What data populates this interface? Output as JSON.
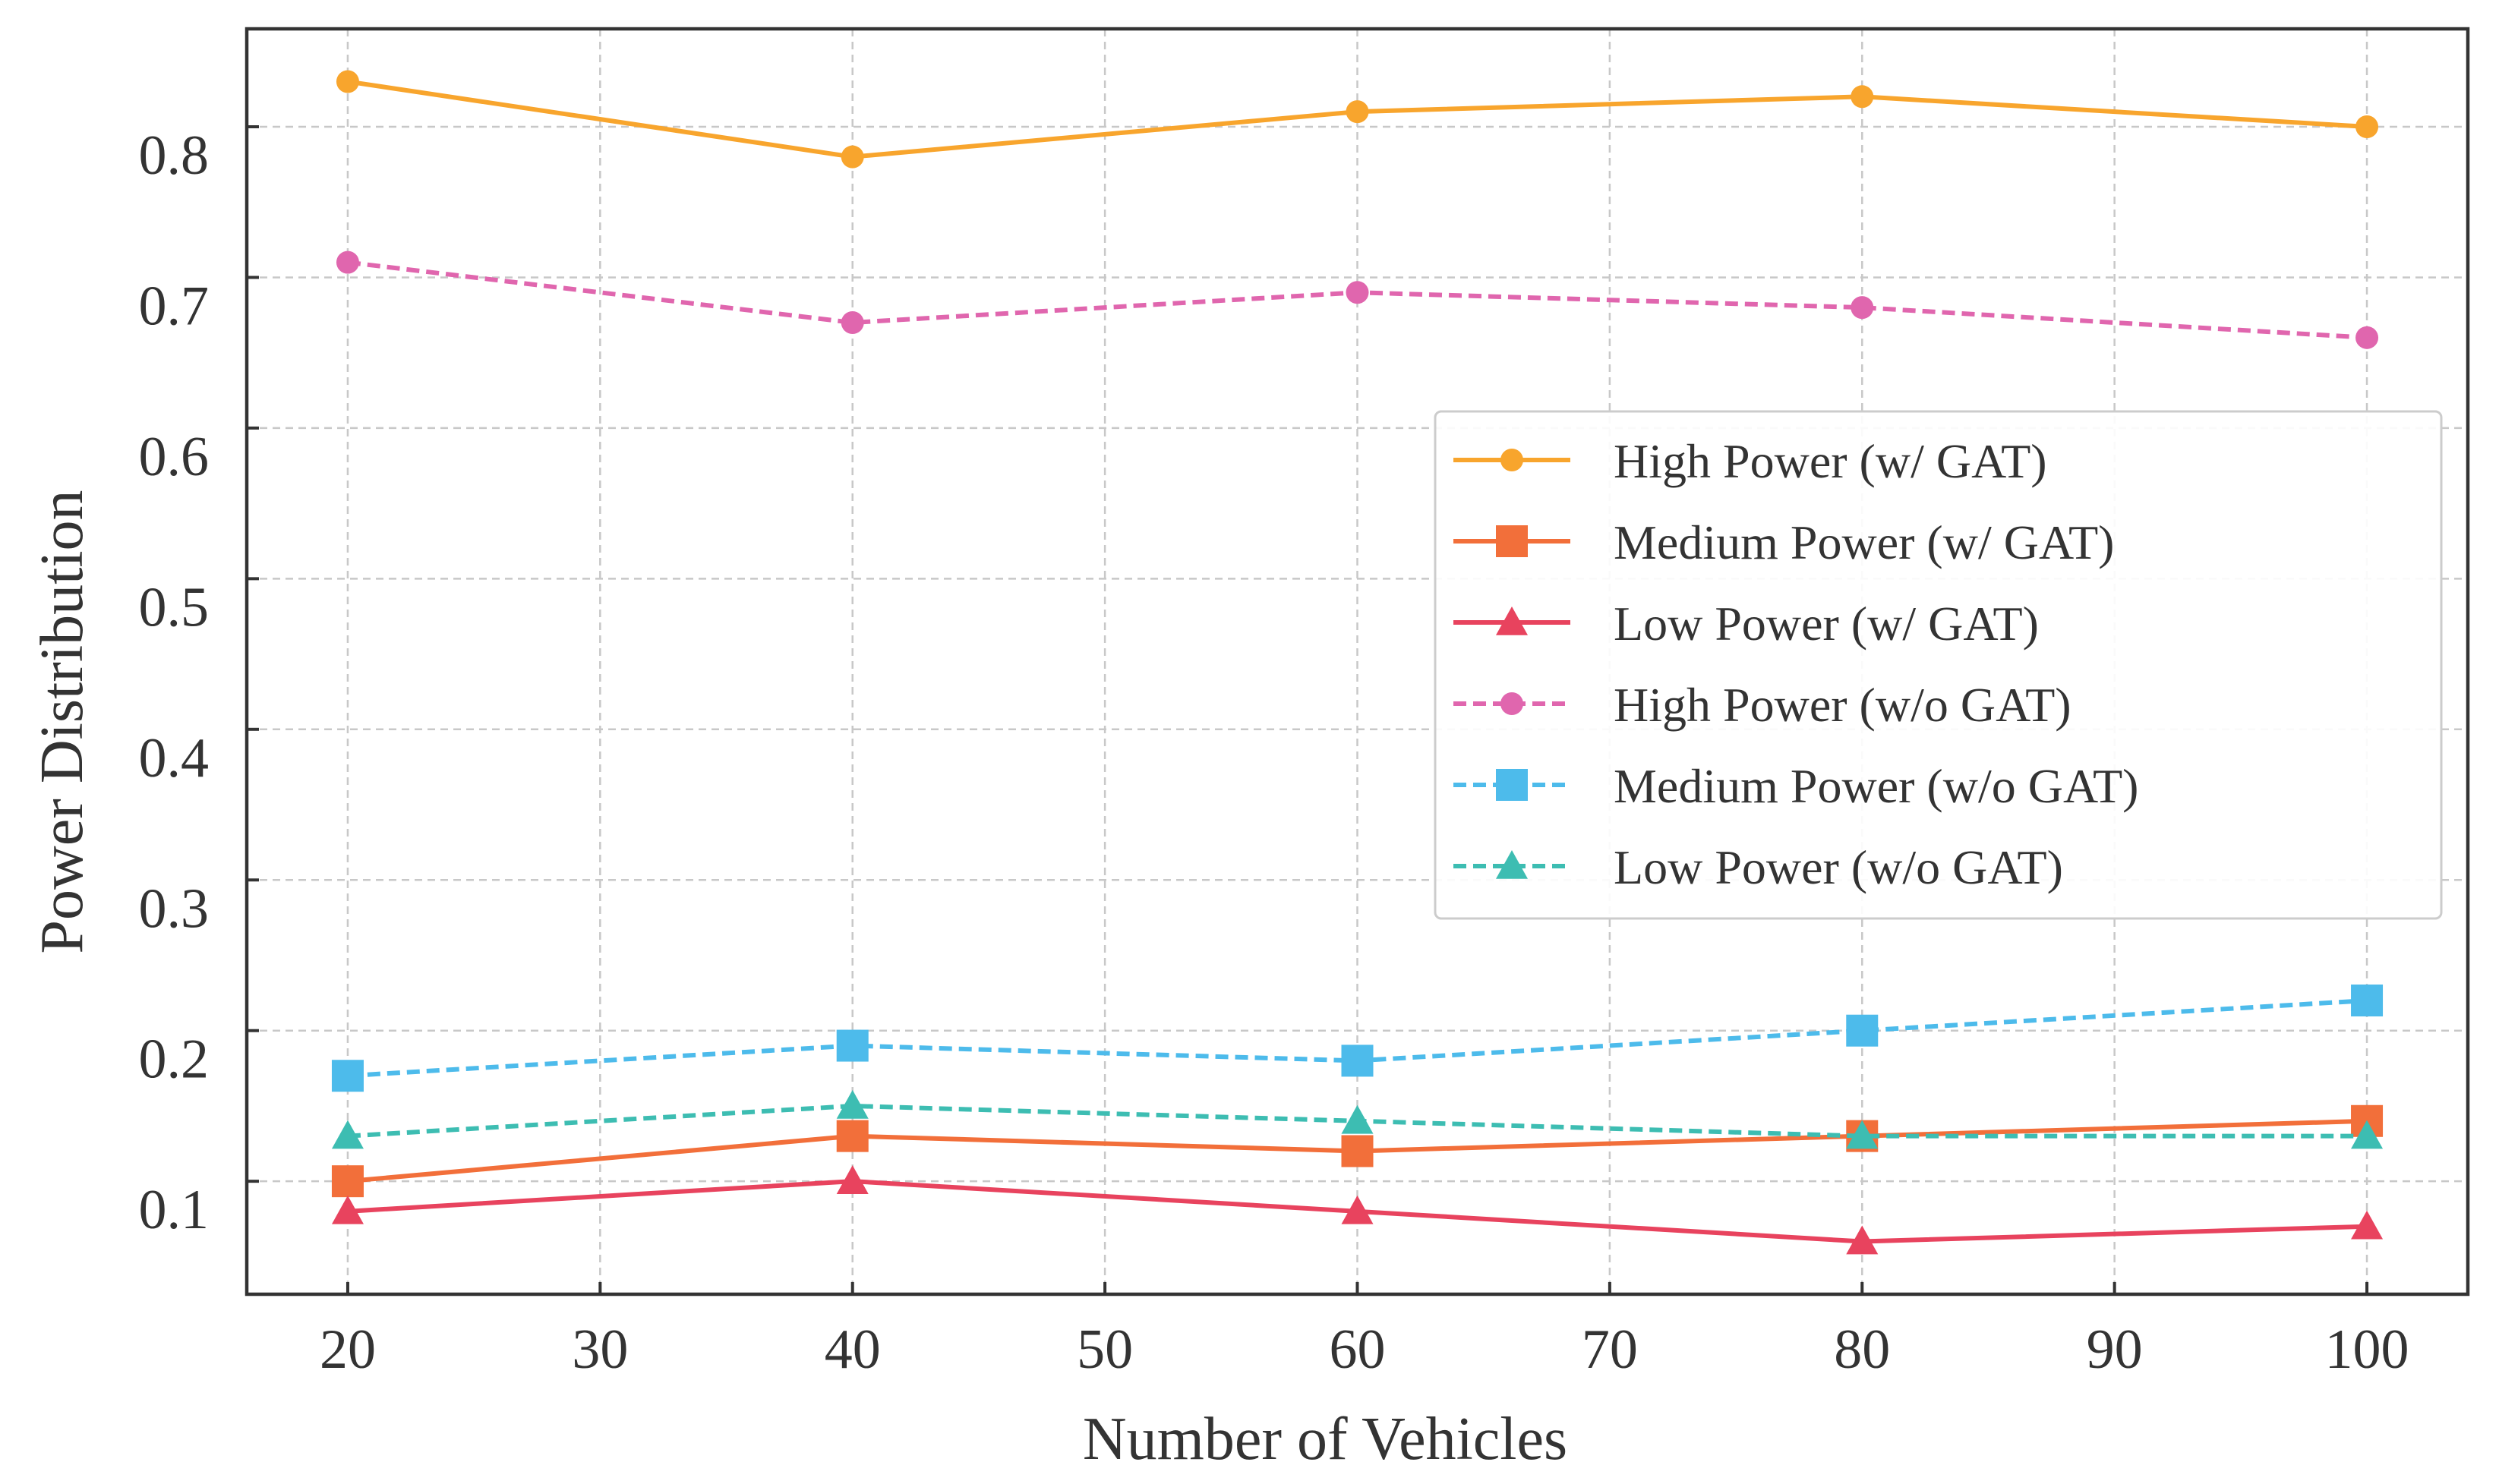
{
  "chart_data": {
    "type": "line",
    "title": "",
    "xlabel": "Number of Vehicles",
    "ylabel": "Power Distribution",
    "x": [
      20,
      40,
      60,
      80,
      100
    ],
    "xlim": [
      16,
      104
    ],
    "ylim": [
      0.025,
      0.865
    ],
    "xticks": [
      20,
      30,
      40,
      50,
      60,
      70,
      80,
      90,
      100
    ],
    "yticks": [
      0.1,
      0.2,
      0.3,
      0.4,
      0.5,
      0.6,
      0.7,
      0.8
    ],
    "xtick_labels": [
      "20",
      "30",
      "40",
      "50",
      "60",
      "70",
      "80",
      "90",
      "100"
    ],
    "ytick_labels": [
      "0.1",
      "0.2",
      "0.3",
      "0.4",
      "0.5",
      "0.6",
      "0.7",
      "0.8"
    ],
    "grid": true,
    "legend_position": "center-right",
    "series": [
      {
        "name": "High Power (w/ GAT)",
        "values": [
          0.83,
          0.78,
          0.81,
          0.82,
          0.8
        ],
        "color": "#F8A52D",
        "marker": "circle",
        "linestyle": "solid"
      },
      {
        "name": "Medium Power (w/ GAT)",
        "values": [
          0.1,
          0.13,
          0.12,
          0.13,
          0.14
        ],
        "color": "#F26F3A",
        "marker": "square",
        "linestyle": "solid"
      },
      {
        "name": "Low Power (w/ GAT)",
        "values": [
          0.08,
          0.1,
          0.08,
          0.06,
          0.07
        ],
        "color": "#E8435E",
        "marker": "triangle",
        "linestyle": "solid"
      },
      {
        "name": "High Power (w/o GAT)",
        "values": [
          0.71,
          0.67,
          0.69,
          0.68,
          0.66
        ],
        "color": "#E066AE",
        "marker": "circle",
        "linestyle": "dashed"
      },
      {
        "name": "Medium Power (w/o GAT)",
        "values": [
          0.17,
          0.19,
          0.18,
          0.2,
          0.22
        ],
        "color": "#4DBBEB",
        "marker": "square",
        "linestyle": "dashed"
      },
      {
        "name": "Low Power (w/o GAT)",
        "values": [
          0.13,
          0.15,
          0.14,
          0.13,
          0.13
        ],
        "color": "#3DBDB2",
        "marker": "triangle",
        "linestyle": "dashed"
      }
    ]
  }
}
